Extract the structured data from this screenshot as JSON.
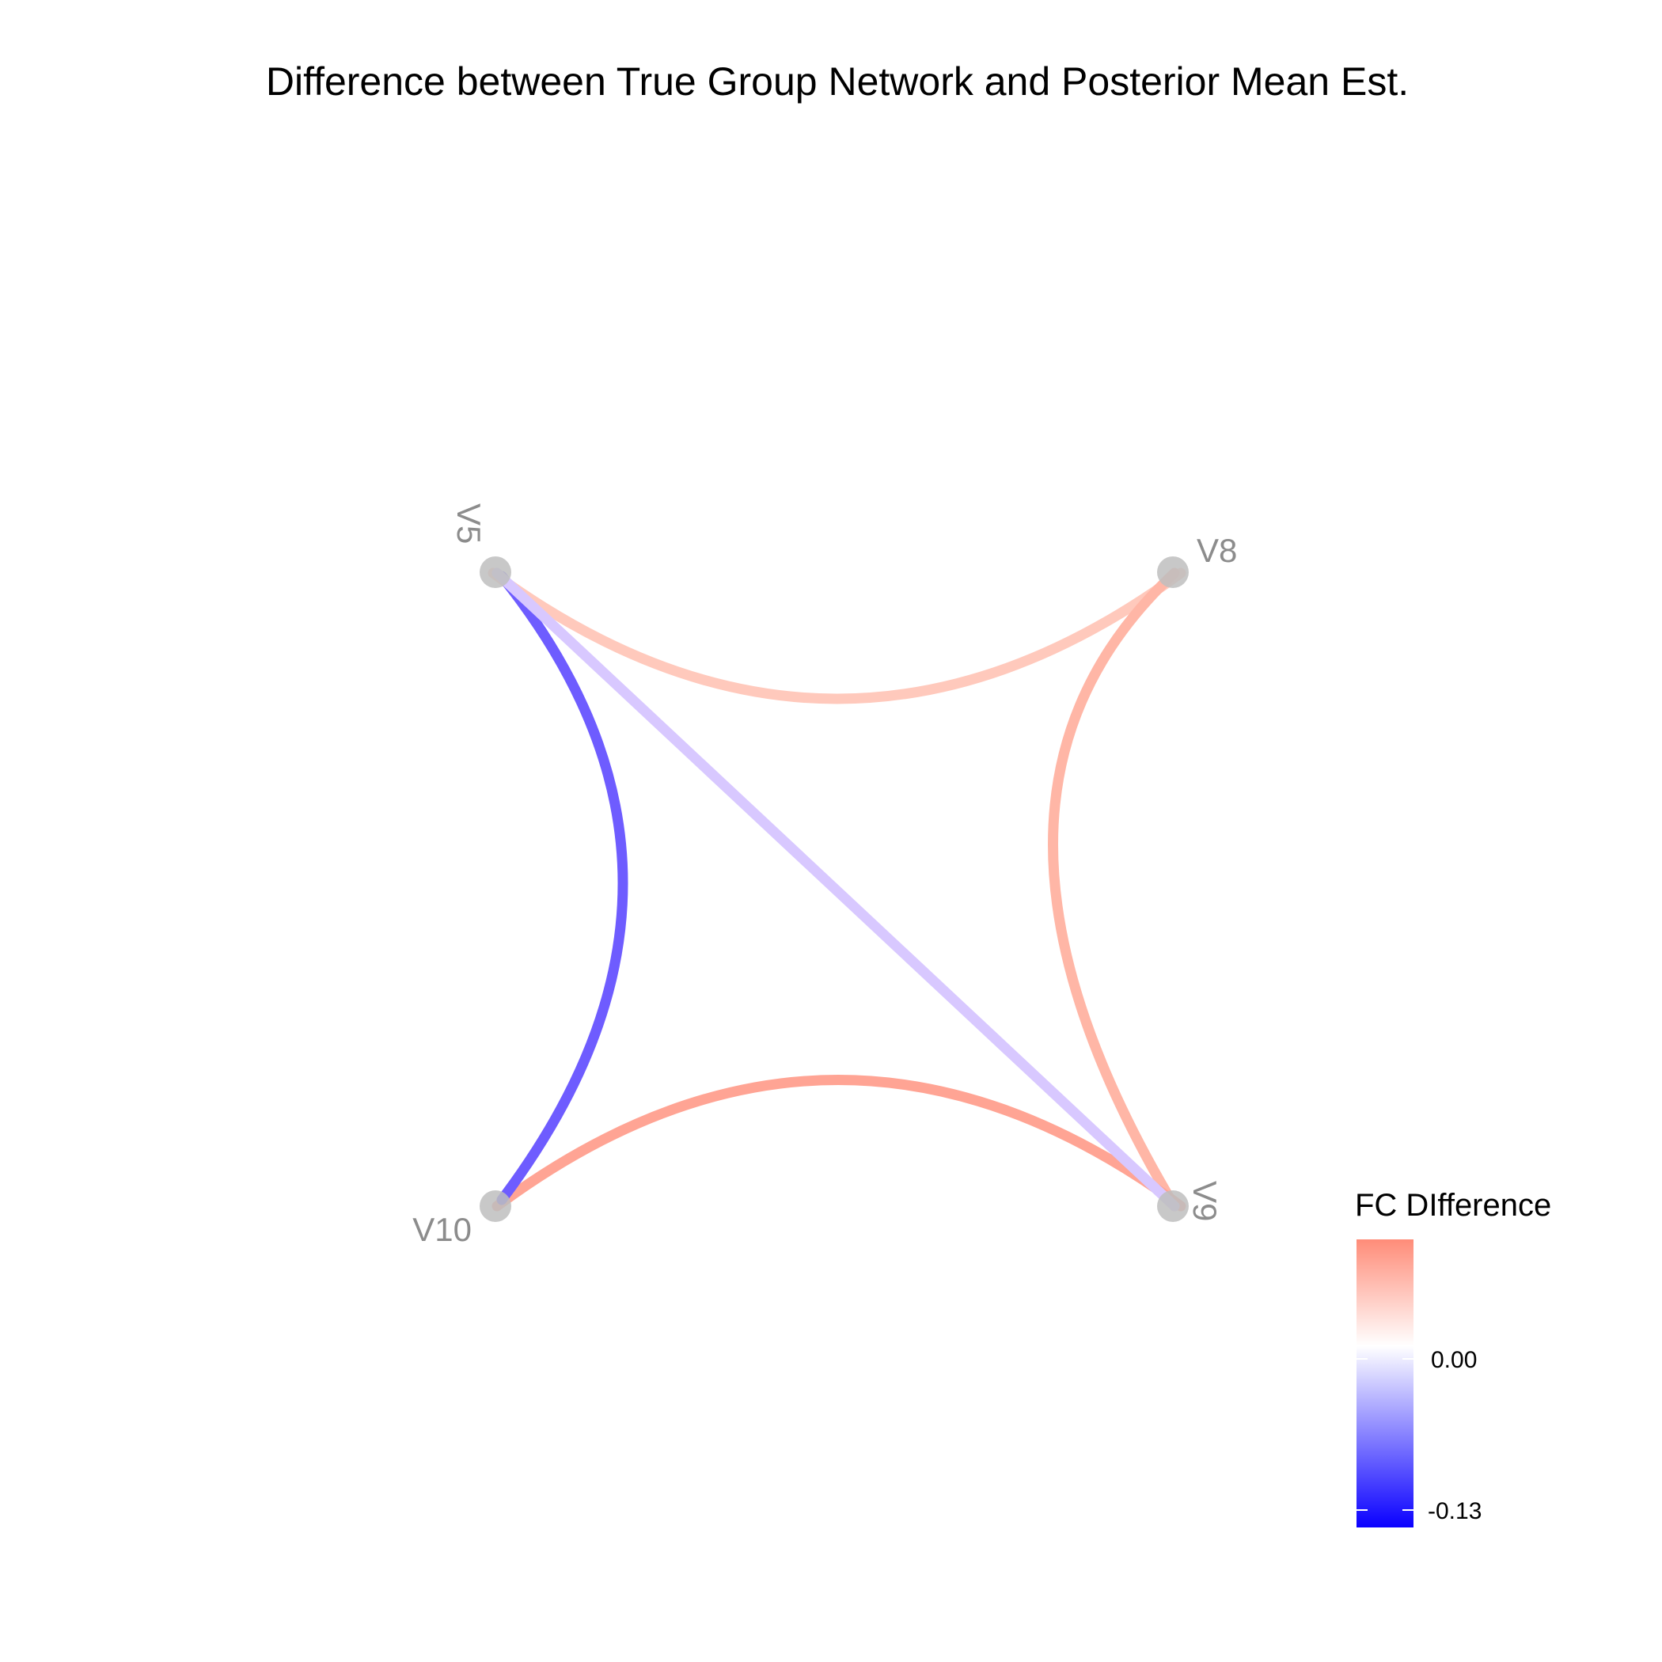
{
  "title": "Difference between True Group Network and Posterior Mean Est.",
  "nodes": [
    {
      "id": "V5",
      "label": "V5"
    },
    {
      "id": "V8",
      "label": "V8"
    },
    {
      "id": "V9",
      "label": "V9"
    },
    {
      "id": "V10",
      "label": "V10"
    }
  ],
  "edges": [
    {
      "from": "V5",
      "to": "V8",
      "value": 0.05,
      "color": "#FFC9BC"
    },
    {
      "from": "V8",
      "to": "V9",
      "value": 0.08,
      "color": "#FFB6A6"
    },
    {
      "from": "V10",
      "to": "V9",
      "value": 0.1,
      "color": "#FFA494"
    },
    {
      "from": "V5",
      "to": "V10",
      "value": -0.11,
      "color": "#6E5CFF"
    },
    {
      "from": "V5",
      "to": "V9",
      "value": -0.04,
      "color": "#D8C8FF"
    }
  ],
  "legend": {
    "title": "FC DIfference",
    "ticks": [
      "0.00",
      "-0.13"
    ],
    "colors": {
      "high": "#FF8C78",
      "mid": "#FFFFFF",
      "low": "#0A00FF"
    }
  },
  "node_color": "#BEBEBE"
}
